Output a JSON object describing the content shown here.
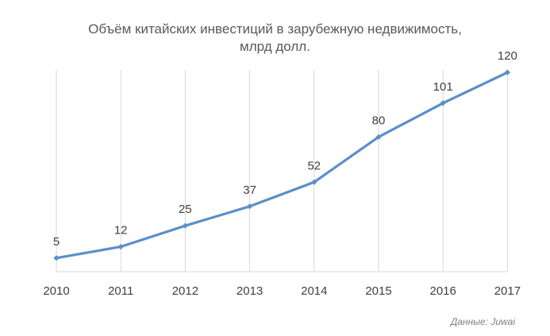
{
  "chart_data": {
    "type": "line",
    "title": "Объём китайских инвестиций в зарубежную недвижимость,",
    "subtitle": "млрд долл.",
    "categories": [
      "2010",
      "2011",
      "2012",
      "2013",
      "2014",
      "2015",
      "2016",
      "2017"
    ],
    "series": [
      {
        "values": [
          5,
          12,
          25,
          37,
          52,
          80,
          101,
          120
        ],
        "color": "#5b8fc9"
      }
    ],
    "data_labels": [
      "5",
      "12",
      "25",
      "37",
      "52",
      "80",
      "101",
      "120"
    ],
    "ylim": [
      0,
      125
    ],
    "grid": "vertical",
    "gridline_color": "#d9d9d9",
    "legend": "none"
  },
  "source": "Данные: Juwai"
}
